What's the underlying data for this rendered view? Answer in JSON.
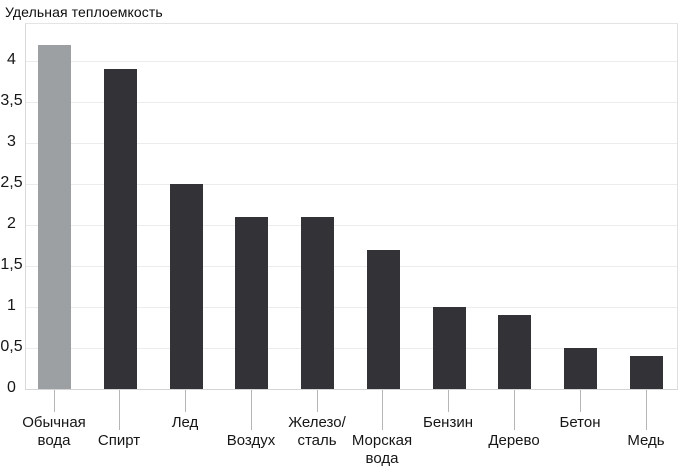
{
  "title": "Удельная теплоемкость",
  "chart_data": {
    "type": "bar",
    "title": "Удельная теплоемкость",
    "categories": [
      "Обычная вода",
      "Спирт",
      "Лед",
      "Воздух",
      "Железо/сталь",
      "Морская вода",
      "Бензин",
      "Дерево",
      "Бетон",
      "Медь"
    ],
    "values": [
      4.2,
      3.9,
      2.5,
      2.1,
      2.1,
      1.7,
      1.0,
      0.9,
      0.5,
      0.4
    ],
    "highlighted_index": 0,
    "x_label_lines": [
      [
        "Обычная",
        "вода"
      ],
      [
        "Спирт"
      ],
      [
        "Лед"
      ],
      [
        "Воздух"
      ],
      [
        "Железо/",
        "сталь"
      ],
      [
        "Морская",
        "вода"
      ],
      [
        "Бензин"
      ],
      [
        "Дерево"
      ],
      [
        "Бетон"
      ],
      [
        "Медь"
      ]
    ],
    "x_label_row": [
      1,
      2,
      1,
      2,
      1,
      2,
      1,
      2,
      1,
      2
    ],
    "y_ticks": [
      {
        "value": 4,
        "label": "4"
      },
      {
        "value": 3.5,
        "label": "3,5"
      },
      {
        "value": 3,
        "label": "3"
      },
      {
        "value": 2.5,
        "label": "2,5"
      },
      {
        "value": 2,
        "label": "2"
      },
      {
        "value": 1.5,
        "label": "1,5"
      },
      {
        "value": 1,
        "label": "1"
      },
      {
        "value": 0.5,
        "label": "0,5"
      },
      {
        "value": 0,
        "label": "0"
      }
    ],
    "ylim": [
      0,
      4.45
    ],
    "xlabel": "",
    "ylabel": "Удельная теплоемкость",
    "grid": "horizontal",
    "legend": "none",
    "colors": {
      "bar_default": "#333337",
      "bar_highlight": "#9da0a3",
      "gridline": "#ececed",
      "axis_border": "#d9d9da",
      "leader_line": "#b6b6b8",
      "text": "#161616"
    }
  }
}
